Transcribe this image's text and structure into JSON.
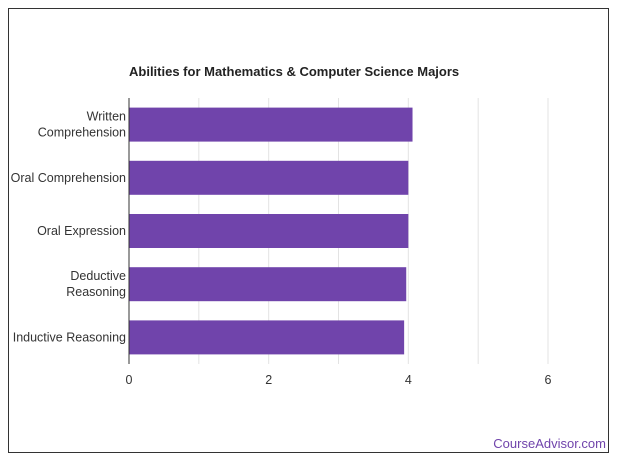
{
  "chart_data": {
    "type": "bar",
    "orientation": "horizontal",
    "title": "Abilities for Mathematics & Computer Science Majors",
    "categories": [
      [
        "Written",
        "Comprehension"
      ],
      [
        "Oral Comprehension"
      ],
      [
        "Oral Expression"
      ],
      [
        "Deductive",
        "Reasoning"
      ],
      [
        "Inductive Reasoning"
      ]
    ],
    "values": [
      4.06,
      4.0,
      4.0,
      3.97,
      3.94
    ],
    "xlim": [
      0,
      6
    ],
    "xticks": [
      0,
      2,
      4,
      6
    ],
    "xlabel": "",
    "ylabel": "",
    "grid": true,
    "bar_color": "#7044ab"
  },
  "footer": {
    "brand": "CourseAdvisor.com",
    "brand_color": "#7044ab"
  }
}
